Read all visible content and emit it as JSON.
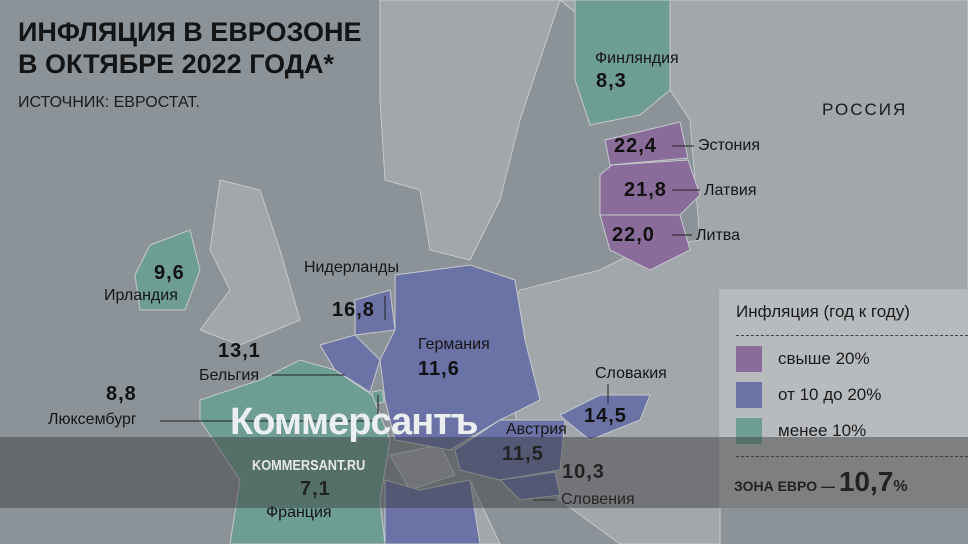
{
  "title_line1": "ИНФЛЯЦИЯ В ЕВРОЗОНЕ",
  "title_line2": "В ОКТЯБРЕ 2022 ГОДА*",
  "source": "ИСТОЧНИК: ЕВРОСТАТ.",
  "russia_label": "РОССИЯ",
  "colors": {
    "above_20": "#8a6c9b",
    "from_10_to_20": "#6b73a6",
    "below_10": "#6e9d93",
    "other_land": "#a2a7ab",
    "sea": "#8c9398"
  },
  "countries": [
    {
      "name": "Финляндия",
      "value": "8,3",
      "category": "below_10"
    },
    {
      "name": "Эстония",
      "value": "22,4",
      "category": "above_20"
    },
    {
      "name": "Латвия",
      "value": "21,8",
      "category": "above_20"
    },
    {
      "name": "Литва",
      "value": "22,0",
      "category": "above_20"
    },
    {
      "name": "Ирландия",
      "value": "9,6",
      "category": "below_10"
    },
    {
      "name": "Нидерланды",
      "value": "16,8",
      "category": "from_10_to_20"
    },
    {
      "name": "Бельгия",
      "value": "13,1",
      "category": "from_10_to_20"
    },
    {
      "name": "Люксембург",
      "value": "8,8",
      "category": "below_10"
    },
    {
      "name": "Германия",
      "value": "11,6",
      "category": "from_10_to_20"
    },
    {
      "name": "Словакия",
      "value": "14,5",
      "category": "from_10_to_20"
    },
    {
      "name": "Австрия",
      "value": "11,5",
      "category": "from_10_to_20"
    },
    {
      "name": "Словения",
      "value": "10,3",
      "category": "from_10_to_20"
    },
    {
      "name": "Франция",
      "value": "7,1",
      "category": "below_10"
    }
  ],
  "legend": {
    "title": "Инфляция (год к году)",
    "items": [
      {
        "label": "свыше 20%",
        "color": "#8a6c9b"
      },
      {
        "label": "от 10 до 20%",
        "color": "#6b73a6"
      },
      {
        "label": "менее 10%",
        "color": "#6e9d93"
      }
    ],
    "eurozone_label": "ЗОНА ЕВРО —",
    "eurozone_value": "10,7",
    "eurozone_unit": "%"
  },
  "watermark": {
    "logo": "Коммерсантъ",
    "site": "KOMMERSANT.RU"
  }
}
